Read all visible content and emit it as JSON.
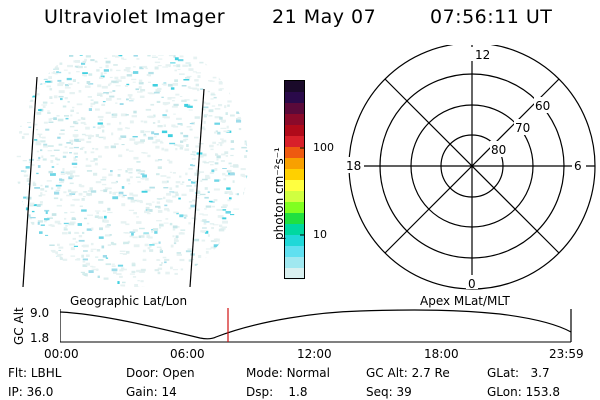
{
  "header": {
    "title": "Ultraviolet Imager",
    "date": "21 May 07",
    "time": "07:56:11 UT"
  },
  "colorbar": {
    "unit_label": "photon cm⁻²s⁻¹",
    "ticks": [
      "100",
      "10"
    ],
    "colors": [
      "#1a0a2a",
      "#2a0a4a",
      "#5a0a3a",
      "#8a0a2a",
      "#b00a1a",
      "#d8202a",
      "#ee5a10",
      "#f8a000",
      "#ffd000",
      "#ffff40",
      "#d0ff40",
      "#80ff20",
      "#20e040",
      "#00d8a0",
      "#20d8d8",
      "#60e0f0",
      "#a0e8f0",
      "#d8f0f0"
    ]
  },
  "polar": {
    "mlt_labels": {
      "top": "12",
      "left": "18",
      "right": "6",
      "bottom": "0"
    },
    "lat_labels": [
      "60",
      "70",
      "80"
    ]
  },
  "timeline": {
    "left_label": "Geographic Lat/Lon",
    "right_label": "Apex MLat/MLT",
    "y_label": "GC Alt",
    "y_ticks": [
      "9.0",
      "1.8"
    ],
    "x_ticks": [
      "00:00",
      "06:00",
      "12:00",
      "18:00",
      "23:59"
    ],
    "marker_color": "#d01010"
  },
  "info": {
    "row1": [
      {
        "key": "Flt:",
        "val": "LBHL"
      },
      {
        "key": "Door:",
        "val": "Open"
      },
      {
        "key": "Mode:",
        "val": "Normal"
      },
      {
        "key": "GC Alt:",
        "val": "2.7 Re"
      },
      {
        "key": "GLat:",
        "val": "3.7"
      }
    ],
    "row2": [
      {
        "key": "IP:",
        "val": "36.0"
      },
      {
        "key": "Gain:",
        "val": "14"
      },
      {
        "key": "Dsp:",
        "val": "1.8"
      },
      {
        "key": "Seq:",
        "val": "39"
      },
      {
        "key": "GLon:",
        "val": "153.8"
      }
    ]
  }
}
